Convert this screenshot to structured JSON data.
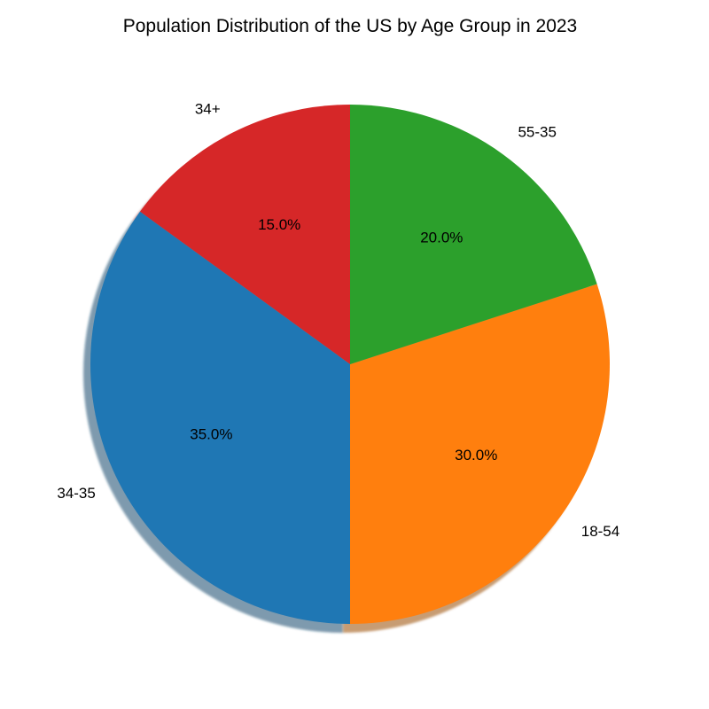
{
  "chart_data": {
    "type": "pie",
    "title": "Population Distribution of the US by Age Group in 2023",
    "slices": [
      {
        "label": "34+",
        "value": 15.0,
        "value_label": "15.0%",
        "color": "#d62728"
      },
      {
        "label": "34-35",
        "value": 35.0,
        "value_label": "35.0%",
        "color": "#1f77b4"
      },
      {
        "label": "18-54",
        "value": 30.0,
        "value_label": "30.0%",
        "color": "#ff7f0e"
      },
      {
        "label": "55-35",
        "value": 20.0,
        "value_label": "20.0%",
        "color": "#2ca02c"
      }
    ],
    "start_angle_deg": 90,
    "direction": "counterclockwise",
    "shadow": true,
    "legend": false
  }
}
